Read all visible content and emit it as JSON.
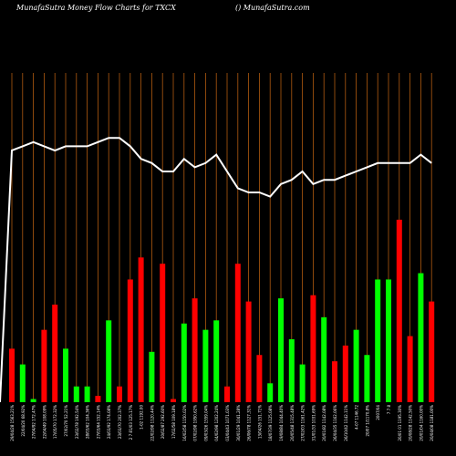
{
  "header": {
    "title": "MunafaSutra  Money Flow  Charts for TXCX",
    "subtitle": "() MunafaSutra.com"
  },
  "colors": {
    "background": "#000000",
    "gridline": "#b05a10",
    "positive": "#00ff00",
    "negative": "#ff0000",
    "line": "#ffffff",
    "label": "#ffffff"
  },
  "chart_data": {
    "type": "bar",
    "has_line_overlay": true,
    "grid": "vertical",
    "categories": [
      "29/04/28 1563.21%",
      "22/04/20 68.92%",
      "27/04/92 172.47%",
      "22/04/49 108.09%",
      "17/05/70 172.32%",
      "27/02/70 52.21%",
      "23/02/78 192.54%",
      "28/03/62 104.36%",
      "27/03/64 152.14%",
      "24/03/92 174.08%",
      "23/03/70 202.37%",
      "2 7 81/03 125.17%",
      "1-02 1192.00",
      "22/02/98 1120.44%",
      "20/02/87 292.60%",
      "17/02/58 109.18%",
      "16/02/58 1150.02%",
      "07/02/98 1950.62%",
      "09/03/26 1559.04%",
      "04/02/98 1202.24%",
      "03/04/43 1071.03%",
      "30/01/29 1041.28%",
      "26/06/78 1127.31%",
      "13/04/26 151.71%",
      "18/07/39 1125.08%",
      "19/08/84 1044.40%",
      "20/05/48 1315.48%",
      "27/02/03 1161.42%",
      "31/01/33 1031.69%",
      "20/01/82 1142.08%",
      "26/04/35 1162.06%",
      "26/10/42 1142.11%",
      "4-07 1146.72",
      "20/07 1/1170.8%",
      "2007/04",
      "7 7 8",
      "20/01 01 1195.30%",
      "20/08/28 1142.50%",
      "20/01/04 1160.00%",
      "20/04/08 1181.00%",
      "21/02/02 1191.16%",
      "29/07/64 1225.07%",
      "23/02/47 1285.09%",
      "17/06/25 1111.19%",
      "20/01/39 1198.96%"
    ],
    "series": [
      {
        "values": [
          -0.17,
          0.12,
          0.01,
          -0.23,
          -0.31,
          0.17,
          0.05,
          0.05,
          -0.02,
          0.26,
          -0.05,
          -0.39,
          -0.46,
          0.16,
          -0.44,
          -0.01,
          0.25,
          -0.33,
          0.23,
          0.26,
          -0.05,
          -0.44,
          -0.32,
          -0.15,
          0.06,
          0.33,
          0.2,
          0.12,
          -0.34,
          0.27,
          -0.13,
          -0.18,
          0.23,
          0.15,
          0.39,
          0.39,
          -0.58,
          -0.21,
          0.41,
          -0.32,
          0.0,
          0.0,
          0.0,
          0.0,
          0.0
        ]
      },
      {
        "values": [
          0.6,
          0.61,
          0.62,
          0.61,
          0.6,
          0.61,
          0.61,
          0.61,
          0.62,
          0.63,
          0.63,
          0.61,
          0.58,
          0.57,
          0.55,
          0.55,
          0.58,
          0.56,
          0.57,
          0.59,
          0.55,
          0.51,
          0.5,
          0.5,
          0.49,
          0.52,
          0.53,
          0.55,
          0.52,
          0.53,
          0.53,
          0.54,
          0.55,
          0.56,
          0.57,
          0.57,
          0.57,
          0.57,
          0.59,
          0.57,
          0.0,
          0.0,
          0.0,
          0.0,
          0.0
        ]
      }
    ],
    "bar_count": 40,
    "line_start_value": 0.0
  }
}
